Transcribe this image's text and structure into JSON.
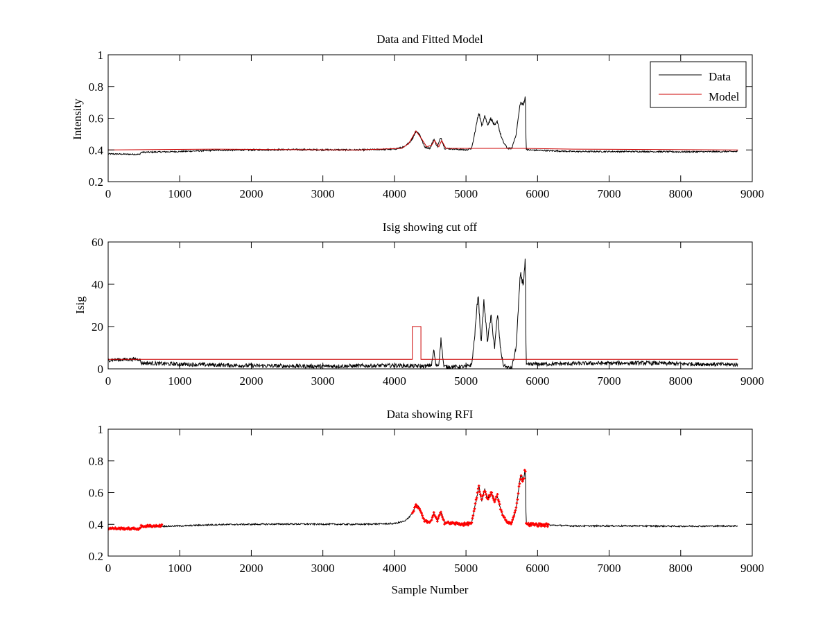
{
  "figure": {
    "background": "#ffffff",
    "axis_color": "#000000"
  },
  "chart_data": [
    {
      "type": "line",
      "title": "Data and Fitted Model",
      "xlabel": "",
      "ylabel": "Intensity",
      "xlim": [
        0,
        9000
      ],
      "ylim": [
        0.2,
        1
      ],
      "xticks": [
        0,
        1000,
        2000,
        3000,
        4000,
        5000,
        6000,
        7000,
        8000,
        9000
      ],
      "yticks": [
        0.2,
        0.4,
        0.6,
        0.8,
        1
      ],
      "ytick_labels": [
        "0.2",
        "0.4",
        "0.6",
        "0.8",
        "1"
      ],
      "legend": {
        "position": "top-right",
        "entries": [
          "Data",
          "Model"
        ]
      },
      "series": [
        {
          "name": "Data",
          "color": "#000000",
          "style": "line",
          "noise": 0.004,
          "points": [
            [
              0,
              0.375
            ],
            [
              440,
              0.372
            ],
            [
              460,
              0.385
            ],
            [
              1000,
              0.39
            ],
            [
              1500,
              0.398
            ],
            [
              2500,
              0.402
            ],
            [
              3500,
              0.4
            ],
            [
              4000,
              0.405
            ],
            [
              4150,
              0.42
            ],
            [
              4250,
              0.47
            ],
            [
              4300,
              0.52
            ],
            [
              4350,
              0.5
            ],
            [
              4420,
              0.42
            ],
            [
              4500,
              0.41
            ],
            [
              4550,
              0.47
            ],
            [
              4600,
              0.42
            ],
            [
              4650,
              0.48
            ],
            [
              4700,
              0.41
            ],
            [
              5000,
              0.4
            ],
            [
              5080,
              0.41
            ],
            [
              5120,
              0.5
            ],
            [
              5180,
              0.64
            ],
            [
              5220,
              0.55
            ],
            [
              5260,
              0.62
            ],
            [
              5300,
              0.56
            ],
            [
              5350,
              0.6
            ],
            [
              5400,
              0.55
            ],
            [
              5440,
              0.58
            ],
            [
              5480,
              0.5
            ],
            [
              5520,
              0.45
            ],
            [
              5580,
              0.41
            ],
            [
              5640,
              0.41
            ],
            [
              5700,
              0.5
            ],
            [
              5760,
              0.7
            ],
            [
              5800,
              0.68
            ],
            [
              5830,
              0.75
            ],
            [
              5840,
              0.41
            ],
            [
              5860,
              0.4
            ],
            [
              6500,
              0.39
            ],
            [
              7500,
              0.39
            ],
            [
              8000,
              0.388
            ],
            [
              8800,
              0.39
            ]
          ]
        },
        {
          "name": "Model",
          "color": "#cc0000",
          "style": "line",
          "noise": 0,
          "points": [
            [
              0,
              0.4
            ],
            [
              1500,
              0.405
            ],
            [
              2500,
              0.402
            ],
            [
              3500,
              0.4
            ],
            [
              4100,
              0.41
            ],
            [
              4200,
              0.44
            ],
            [
              4300,
              0.52
            ],
            [
              4380,
              0.47
            ],
            [
              4450,
              0.42
            ],
            [
              4520,
              0.43
            ],
            [
              4560,
              0.46
            ],
            [
              4620,
              0.42
            ],
            [
              4660,
              0.46
            ],
            [
              4720,
              0.41
            ],
            [
              5000,
              0.41
            ],
            [
              5800,
              0.41
            ],
            [
              6500,
              0.405
            ],
            [
              8800,
              0.4
            ]
          ]
        }
      ]
    },
    {
      "type": "line",
      "title": "Isig showing cut off",
      "xlabel": "",
      "ylabel": "Isig",
      "xlim": [
        0,
        9000
      ],
      "ylim": [
        0,
        60
      ],
      "xticks": [
        0,
        1000,
        2000,
        3000,
        4000,
        5000,
        6000,
        7000,
        8000,
        9000
      ],
      "yticks": [
        0,
        20,
        40,
        60
      ],
      "ytick_labels": [
        "0",
        "20",
        "40",
        "60"
      ],
      "series": [
        {
          "name": "Isig",
          "color": "#000000",
          "style": "line",
          "noise": 0.9,
          "points": [
            [
              0,
              4.2
            ],
            [
              440,
              4.6
            ],
            [
              460,
              2.8
            ],
            [
              1000,
              2.2
            ],
            [
              2000,
              1.5
            ],
            [
              3000,
              1.2
            ],
            [
              4000,
              1.6
            ],
            [
              4450,
              1.2
            ],
            [
              4520,
              2
            ],
            [
              4550,
              9
            ],
            [
              4580,
              1.5
            ],
            [
              4620,
              2
            ],
            [
              4650,
              14
            ],
            [
              4690,
              1
            ],
            [
              5000,
              1
            ],
            [
              5080,
              2
            ],
            [
              5120,
              15
            ],
            [
              5170,
              36
            ],
            [
              5210,
              12
            ],
            [
              5250,
              32
            ],
            [
              5300,
              13
            ],
            [
              5350,
              25
            ],
            [
              5400,
              10
            ],
            [
              5440,
              26
            ],
            [
              5480,
              10
            ],
            [
              5520,
              2
            ],
            [
              5580,
              0.5
            ],
            [
              5640,
              0.5
            ],
            [
              5700,
              10
            ],
            [
              5760,
              45
            ],
            [
              5800,
              40
            ],
            [
              5830,
              52
            ],
            [
              5840,
              1.5
            ],
            [
              5900,
              2.2
            ],
            [
              6500,
              2.5
            ],
            [
              7500,
              2.8
            ],
            [
              8000,
              2.4
            ],
            [
              8800,
              2
            ]
          ]
        },
        {
          "name": "Cut off",
          "color": "#cc0000",
          "style": "line",
          "noise": 0,
          "points": [
            [
              0,
              4.5
            ],
            [
              4250,
              4.5
            ],
            [
              4250,
              20
            ],
            [
              4370,
              20
            ],
            [
              4370,
              4.5
            ],
            [
              8800,
              4.5
            ]
          ]
        }
      ]
    },
    {
      "type": "line",
      "title": "Data showing RFI",
      "xlabel": "Sample Number",
      "ylabel": "",
      "xlim": [
        0,
        9000
      ],
      "ylim": [
        0.2,
        1
      ],
      "xticks": [
        0,
        1000,
        2000,
        3000,
        4000,
        5000,
        6000,
        7000,
        8000,
        9000
      ],
      "yticks": [
        0.2,
        0.4,
        0.6,
        0.8,
        1
      ],
      "ytick_labels": [
        "0.2",
        "0.4",
        "0.6",
        "0.8",
        "1"
      ],
      "series": [
        {
          "name": "Data",
          "color": "#000000",
          "style": "line",
          "noise": 0.004,
          "points": [
            [
              0,
              0.375
            ],
            [
              440,
              0.372
            ],
            [
              460,
              0.385
            ],
            [
              1000,
              0.39
            ],
            [
              1500,
              0.398
            ],
            [
              2500,
              0.402
            ],
            [
              3500,
              0.4
            ],
            [
              4000,
              0.405
            ],
            [
              4150,
              0.42
            ],
            [
              4250,
              0.47
            ],
            [
              4300,
              0.52
            ],
            [
              4350,
              0.5
            ],
            [
              4420,
              0.42
            ],
            [
              4500,
              0.41
            ],
            [
              4550,
              0.47
            ],
            [
              4600,
              0.42
            ],
            [
              4650,
              0.48
            ],
            [
              4700,
              0.41
            ],
            [
              5000,
              0.4
            ],
            [
              5080,
              0.41
            ],
            [
              5120,
              0.5
            ],
            [
              5180,
              0.64
            ],
            [
              5220,
              0.55
            ],
            [
              5260,
              0.62
            ],
            [
              5300,
              0.56
            ],
            [
              5350,
              0.6
            ],
            [
              5400,
              0.55
            ],
            [
              5440,
              0.58
            ],
            [
              5480,
              0.5
            ],
            [
              5520,
              0.45
            ],
            [
              5580,
              0.41
            ],
            [
              5640,
              0.41
            ],
            [
              5700,
              0.5
            ],
            [
              5760,
              0.7
            ],
            [
              5800,
              0.68
            ],
            [
              5830,
              0.75
            ],
            [
              5840,
              0.41
            ],
            [
              5860,
              0.4
            ],
            [
              6500,
              0.39
            ],
            [
              7500,
              0.39
            ],
            [
              8000,
              0.388
            ],
            [
              8800,
              0.39
            ]
          ]
        },
        {
          "name": "RFI flagged",
          "color": "#ff0000",
          "style": "markers",
          "noise": 0.006,
          "segments": [
            [
              [
                0,
                0.375
              ],
              [
                440,
                0.372
              ],
              [
                460,
                0.388
              ],
              [
                750,
                0.392
              ]
            ],
            [
              [
                4250,
                0.47
              ],
              [
                4300,
                0.52
              ],
              [
                4350,
                0.5
              ],
              [
                4420,
                0.42
              ],
              [
                4500,
                0.41
              ],
              [
                4550,
                0.47
              ],
              [
                4600,
                0.42
              ],
              [
                4650,
                0.48
              ],
              [
                4700,
                0.41
              ],
              [
                5000,
                0.4
              ],
              [
                5080,
                0.41
              ],
              [
                5120,
                0.5
              ],
              [
                5180,
                0.64
              ],
              [
                5220,
                0.55
              ],
              [
                5260,
                0.62
              ],
              [
                5300,
                0.56
              ],
              [
                5350,
                0.6
              ],
              [
                5400,
                0.55
              ],
              [
                5440,
                0.58
              ],
              [
                5480,
                0.5
              ],
              [
                5520,
                0.45
              ],
              [
                5580,
                0.41
              ],
              [
                5640,
                0.41
              ],
              [
                5700,
                0.5
              ],
              [
                5760,
                0.7
              ],
              [
                5800,
                0.68
              ],
              [
                5830,
                0.75
              ],
              [
                5840,
                0.41
              ],
              [
                5860,
                0.4
              ],
              [
                6150,
                0.395
              ]
            ]
          ]
        }
      ]
    }
  ]
}
